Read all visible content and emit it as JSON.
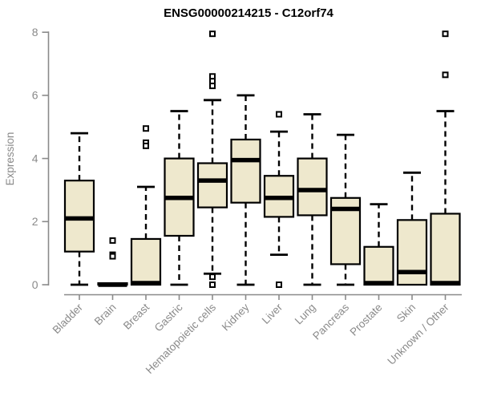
{
  "title": "ENSG00000214215 - C12orf74",
  "chart_data": {
    "type": "boxplot",
    "title": "ENSG00000214215 - C12orf74",
    "xlabel": "",
    "ylabel": "Expression",
    "ylim": [
      0,
      8
    ],
    "yticks": [
      0,
      2,
      4,
      6,
      8
    ],
    "grid": false,
    "legend": false,
    "categories": [
      "Bladder",
      "Brain",
      "Breast",
      "Gastric",
      "Hematopoietic cells",
      "Kidney",
      "Liver",
      "Lung",
      "Pancreas",
      "Prostate",
      "Skin",
      "Unknown / Other"
    ],
    "series": [
      {
        "category": "Bladder",
        "whisker_low": 0,
        "q1": 1.05,
        "median": 2.1,
        "q3": 3.3,
        "whisker_high": 4.8,
        "outliers": []
      },
      {
        "category": "Brain",
        "whisker_low": 0,
        "q1": 0,
        "median": 0,
        "q3": 0.05,
        "whisker_high": 0.05,
        "outliers": [
          1.4,
          0.95,
          0.9
        ]
      },
      {
        "category": "Breast",
        "whisker_low": 0,
        "q1": 0,
        "median": 0.05,
        "q3": 1.45,
        "whisker_high": 3.1,
        "outliers": [
          4.95,
          4.5,
          4.4
        ]
      },
      {
        "category": "Gastric",
        "whisker_low": 0,
        "q1": 1.55,
        "median": 2.75,
        "q3": 4.0,
        "whisker_high": 5.5,
        "outliers": []
      },
      {
        "category": "Hematopoietic cells",
        "whisker_low": 0.35,
        "q1": 2.45,
        "median": 3.3,
        "q3": 3.85,
        "whisker_high": 5.85,
        "outliers": [
          7.95,
          6.6,
          6.45,
          6.3,
          0.25,
          0
        ]
      },
      {
        "category": "Kidney",
        "whisker_low": 0,
        "q1": 2.6,
        "median": 3.95,
        "q3": 4.6,
        "whisker_high": 6.0,
        "outliers": []
      },
      {
        "category": "Liver",
        "whisker_low": 0.95,
        "q1": 2.15,
        "median": 2.75,
        "q3": 3.45,
        "whisker_high": 4.85,
        "outliers": [
          5.4,
          0
        ]
      },
      {
        "category": "Lung",
        "whisker_low": 0,
        "q1": 2.2,
        "median": 3.0,
        "q3": 4.0,
        "whisker_high": 5.4,
        "outliers": []
      },
      {
        "category": "Pancreas",
        "whisker_low": 0,
        "q1": 0.65,
        "median": 2.4,
        "q3": 2.75,
        "whisker_high": 4.75,
        "outliers": []
      },
      {
        "category": "Prostate",
        "whisker_low": 0,
        "q1": 0,
        "median": 0.05,
        "q3": 1.2,
        "whisker_high": 2.55,
        "outliers": []
      },
      {
        "category": "Skin",
        "whisker_low": 0,
        "q1": 0,
        "median": 0.4,
        "q3": 2.05,
        "whisker_high": 3.55,
        "outliers": []
      },
      {
        "category": "Unknown / Other",
        "whisker_low": 0,
        "q1": 0,
        "median": 0.05,
        "q3": 2.25,
        "whisker_high": 5.5,
        "outliers": [
          7.95,
          6.65
        ]
      }
    ],
    "colors": {
      "box_fill": "#EEE8CD",
      "box_stroke": "#000000",
      "median": "#000000",
      "whisker": "#000000",
      "outlier_stroke": "#000000",
      "outlier_fill": "#ffffff",
      "axis": "#8a8a8a",
      "tick_label": "#8a8a8a",
      "axis_title": "#8a8a8a",
      "title": "#000000"
    }
  }
}
